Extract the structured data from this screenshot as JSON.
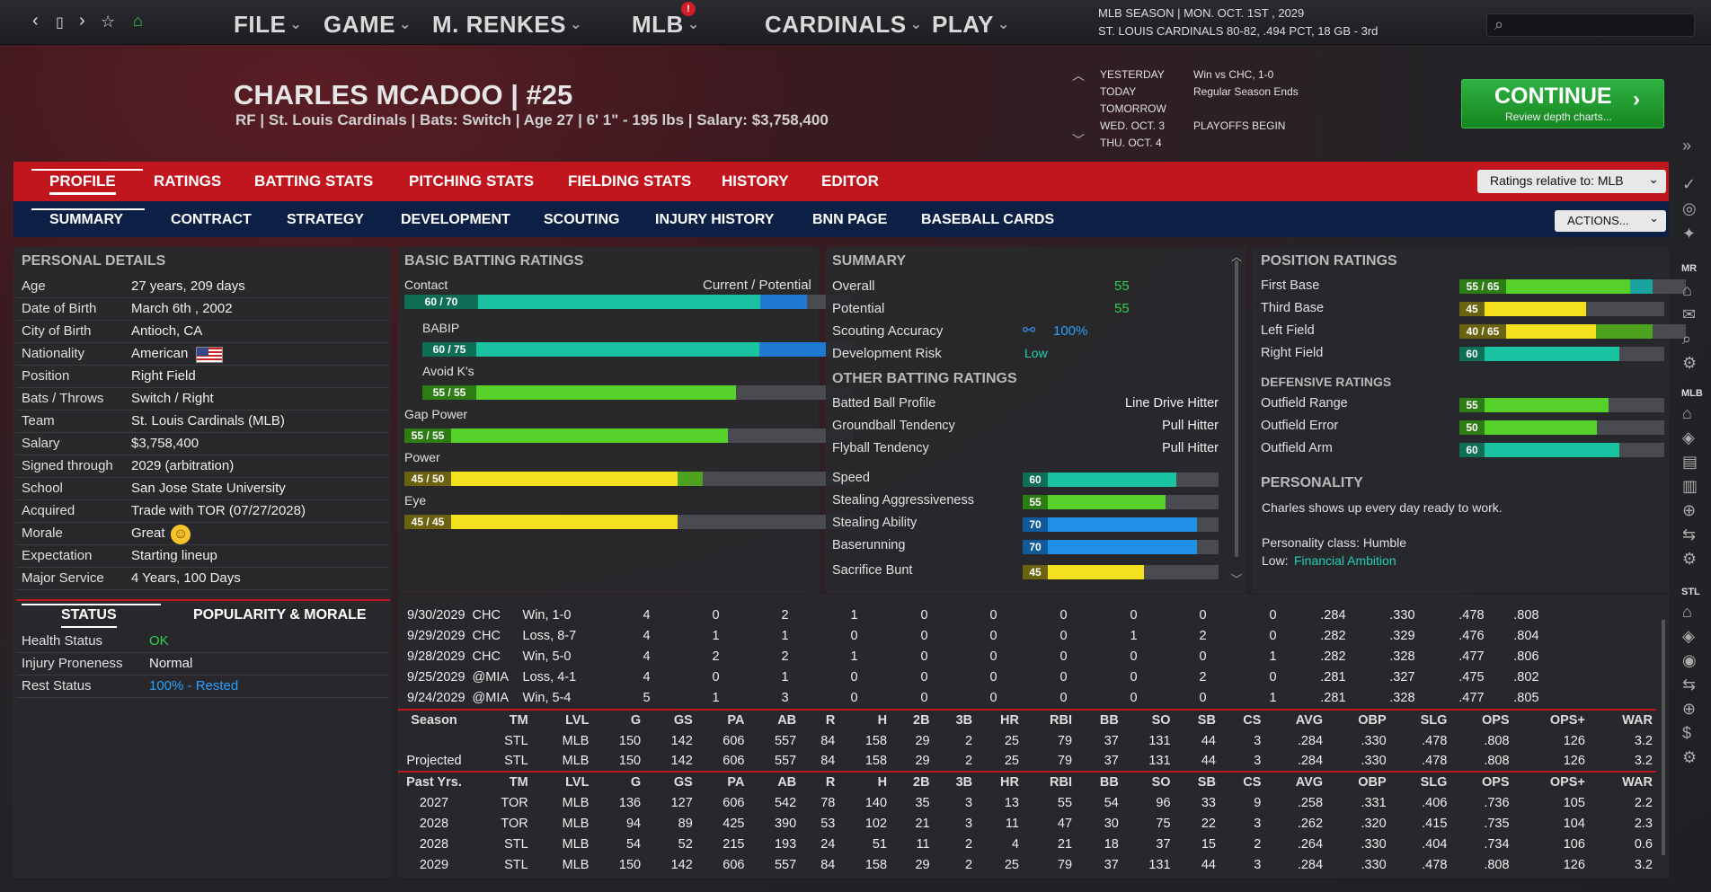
{
  "nav": {
    "icons": [
      "chevron-left-icon",
      "page-icon",
      "chevron-right-icon",
      "star-icon",
      "home-icon"
    ],
    "menus": [
      {
        "label": "FILE"
      },
      {
        "label": "GAME"
      },
      {
        "label": "M. RENKES"
      },
      {
        "label": "MLB"
      },
      {
        "label": "CARDINALS"
      },
      {
        "label": "PLAY"
      }
    ],
    "badge": "!",
    "season": "MLB SEASON  |  MON. OCT. 1ST , 2029",
    "team_line": "ST. LOUIS CARDINALS  80-82, .494 PCT, 18 GB - 3rd"
  },
  "player": {
    "name": "CHARLES MCADOO  |  #25",
    "info": "RF | St. Louis Cardinals  |  Bats: Switch  |  Age 27  |  6' 1\"  - 195 lbs  |  Salary: $3,758,400"
  },
  "schedule": [
    {
      "day": "YESTERDAY",
      "event": "Win vs CHC, 1-0"
    },
    {
      "day": "TODAY",
      "event": "Regular Season Ends"
    },
    {
      "day": "TOMORROW",
      "event": ""
    },
    {
      "day": "WED. OCT. 3",
      "event": "PLAYOFFS BEGIN"
    },
    {
      "day": "THU. OCT. 4",
      "event": ""
    }
  ],
  "continue": {
    "label": "CONTINUE",
    "sub": "Review depth charts..."
  },
  "tabs1": [
    "PROFILE",
    "RATINGS",
    "BATTING STATS",
    "PITCHING STATS",
    "FIELDING STATS",
    "HISTORY",
    "EDITOR"
  ],
  "ratings_select": "Ratings relative to: MLB",
  "tabs2": [
    "SUMMARY",
    "CONTRACT",
    "STRATEGY",
    "DEVELOPMENT",
    "SCOUTING",
    "INJURY HISTORY",
    "BNN PAGE",
    "BASEBALL CARDS"
  ],
  "actions": "ACTIONS...",
  "personal": {
    "title": "PERSONAL DETAILS",
    "rows": [
      {
        "k": "Age",
        "v": "27 years, 209 days"
      },
      {
        "k": "Date of Birth",
        "v": "March 6th , 2002"
      },
      {
        "k": "City of Birth",
        "v": "Antioch, CA"
      },
      {
        "k": "Nationality",
        "v": "American"
      },
      {
        "k": "Position",
        "v": "Right Field"
      },
      {
        "k": "Bats / Throws",
        "v": "Switch / Right"
      },
      {
        "k": "Team",
        "v": "St. Louis Cardinals (MLB)"
      },
      {
        "k": "Salary",
        "v": "$3,758,400"
      },
      {
        "k": "Signed through",
        "v": "2029 (arbitration)"
      },
      {
        "k": "School",
        "v": "San Jose State University"
      },
      {
        "k": "Acquired",
        "v": "Trade with TOR (07/27/2028)"
      },
      {
        "k": "Morale",
        "v": "Great"
      },
      {
        "k": "Expectation",
        "v": "Starting lineup"
      },
      {
        "k": "Major Service",
        "v": "4 Years, 100 Days"
      }
    ]
  },
  "status": {
    "tabs": [
      "STATUS",
      "POPULARITY & MORALE"
    ],
    "rows": [
      {
        "k": "Health Status",
        "v": "OK"
      },
      {
        "k": "Injury Proneness",
        "v": "Normal"
      },
      {
        "k": "Rest Status",
        "v": "100% - Rested"
      }
    ]
  },
  "batting": {
    "title": "BASIC BATTING RATINGS",
    "header_right": "Current / Potential",
    "bars": [
      {
        "name": "Contact",
        "label": "60 / 70",
        "cur": 60,
        "pot": 70
      },
      {
        "name": "BABIP",
        "label": "60 / 75",
        "cur": 60,
        "pot": 75
      },
      {
        "name": "Avoid K's",
        "label": "55 / 55",
        "cur": 55,
        "pot": 55
      },
      {
        "name": "Gap Power",
        "label": "55 / 55",
        "cur": 55,
        "pot": 55
      },
      {
        "name": "Power",
        "label": "45 / 50",
        "cur": 45,
        "pot": 50
      },
      {
        "name": "Eye",
        "label": "45 / 45",
        "cur": 45,
        "pot": 45
      }
    ]
  },
  "summary": {
    "title": "SUMMARY",
    "overall_k": "Overall",
    "overall": "55",
    "potential_k": "Potential",
    "potential": "55",
    "scout_k": "Scouting Accuracy",
    "scout": "100%",
    "risk_k": "Development Risk",
    "risk": "Low",
    "other_title": "OTHER BATTING RATINGS",
    "other": [
      {
        "k": "Batted Ball Profile",
        "v": "Line Drive Hitter"
      },
      {
        "k": "Groundball Tendency",
        "v": "Pull Hitter"
      },
      {
        "k": "Flyball Tendency",
        "v": "Pull Hitter"
      }
    ],
    "speed": [
      {
        "k": "Speed",
        "v": 60
      },
      {
        "k": "Stealing Aggressiveness",
        "v": 55
      },
      {
        "k": "Stealing Ability",
        "v": 70
      },
      {
        "k": "Baserunning",
        "v": 70
      },
      {
        "k": "Sacrifice Bunt",
        "v": 45
      }
    ]
  },
  "position": {
    "title": "POSITION RATINGS",
    "bars": [
      {
        "k": "First Base",
        "label": "55 / 65",
        "cur": 55,
        "pot": 65
      },
      {
        "k": "Third Base",
        "label": "45",
        "cur": 45,
        "pot": 45
      },
      {
        "k": "Left Field",
        "label": "40 / 65",
        "cur": 40,
        "pot": 65
      },
      {
        "k": "Right Field",
        "label": "60",
        "cur": 60,
        "pot": 60
      }
    ],
    "def_title": "DEFENSIVE RATINGS",
    "def": [
      {
        "k": "Outfield Range",
        "v": 55
      },
      {
        "k": "Outfield Error",
        "v": 50
      },
      {
        "k": "Outfield Arm",
        "v": 60
      }
    ],
    "pers_title": "PERSONALITY",
    "pers_text": "Charles shows up every day ready to work.",
    "pers_class": "Personality class: Humble",
    "low_k": "Low:",
    "low_v": "Financial Ambition"
  },
  "games": [
    [
      "9/30/2029",
      "CHC",
      "Win, 1-0",
      "4",
      "0",
      "2",
      "1",
      "0",
      "0",
      "0",
      "0",
      "0",
      "0",
      ".284",
      ".330",
      ".478",
      ".808"
    ],
    [
      "9/29/2029",
      "CHC",
      "Loss, 8-7",
      "4",
      "1",
      "1",
      "0",
      "0",
      "0",
      "0",
      "1",
      "2",
      "0",
      ".282",
      ".329",
      ".476",
      ".804"
    ],
    [
      "9/28/2029",
      "CHC",
      "Win, 5-0",
      "4",
      "2",
      "2",
      "1",
      "0",
      "0",
      "0",
      "0",
      "0",
      "1",
      ".282",
      ".328",
      ".477",
      ".806"
    ],
    [
      "9/25/2029",
      "@MIA",
      "Loss, 4-1",
      "4",
      "0",
      "1",
      "0",
      "0",
      "0",
      "0",
      "0",
      "2",
      "0",
      ".281",
      ".327",
      ".475",
      ".802"
    ],
    [
      "9/24/2029",
      "@MIA",
      "Win, 5-4",
      "5",
      "1",
      "3",
      "0",
      "0",
      "0",
      "0",
      "0",
      "0",
      "1",
      ".281",
      ".328",
      ".477",
      ".805"
    ]
  ],
  "season_header": [
    "Season",
    "TM",
    "LVL",
    "G",
    "GS",
    "PA",
    "AB",
    "R",
    "H",
    "2B",
    "3B",
    "HR",
    "RBI",
    "BB",
    "SO",
    "SB",
    "CS",
    "AVG",
    "OBP",
    "SLG",
    "OPS",
    "OPS+",
    "WAR"
  ],
  "season_rows": [
    [
      "",
      "STL",
      "MLB",
      "150",
      "142",
      "606",
      "557",
      "84",
      "158",
      "29",
      "2",
      "25",
      "79",
      "37",
      "131",
      "44",
      "3",
      ".284",
      ".330",
      ".478",
      ".808",
      "126",
      "3.2"
    ],
    [
      "Projected",
      "STL",
      "MLB",
      "150",
      "142",
      "606",
      "557",
      "84",
      "158",
      "29",
      "2",
      "25",
      "79",
      "37",
      "131",
      "44",
      "3",
      ".284",
      ".330",
      ".478",
      ".808",
      "126",
      "3.2"
    ]
  ],
  "past_header": [
    "Past Yrs.",
    "TM",
    "LVL",
    "G",
    "GS",
    "PA",
    "AB",
    "R",
    "H",
    "2B",
    "3B",
    "HR",
    "RBI",
    "BB",
    "SO",
    "SB",
    "CS",
    "AVG",
    "OBP",
    "SLG",
    "OPS",
    "OPS+",
    "WAR"
  ],
  "past_rows": [
    [
      "2027",
      "TOR",
      "MLB",
      "136",
      "127",
      "606",
      "542",
      "78",
      "140",
      "35",
      "3",
      "13",
      "55",
      "54",
      "96",
      "33",
      "9",
      ".258",
      ".331",
      ".406",
      ".736",
      "105",
      "2.2"
    ],
    [
      "2028",
      "TOR",
      "MLB",
      "94",
      "89",
      "425",
      "390",
      "53",
      "102",
      "21",
      "3",
      "11",
      "47",
      "30",
      "75",
      "22",
      "3",
      ".262",
      ".320",
      ".415",
      ".735",
      "104",
      "2.3"
    ],
    [
      "2028",
      "STL",
      "MLB",
      "54",
      "52",
      "215",
      "193",
      "24",
      "51",
      "11",
      "2",
      "4",
      "21",
      "18",
      "37",
      "15",
      "2",
      ".264",
      ".330",
      ".404",
      ".734",
      "106",
      "0.6"
    ],
    [
      "2029",
      "STL",
      "MLB",
      "150",
      "142",
      "606",
      "557",
      "84",
      "158",
      "29",
      "2",
      "25",
      "79",
      "37",
      "131",
      "44",
      "3",
      ".284",
      ".330",
      ".478",
      ".808",
      "126",
      "3.2"
    ]
  ],
  "rail": {
    "labels": [
      "MR",
      "MLB",
      "STL"
    ]
  }
}
